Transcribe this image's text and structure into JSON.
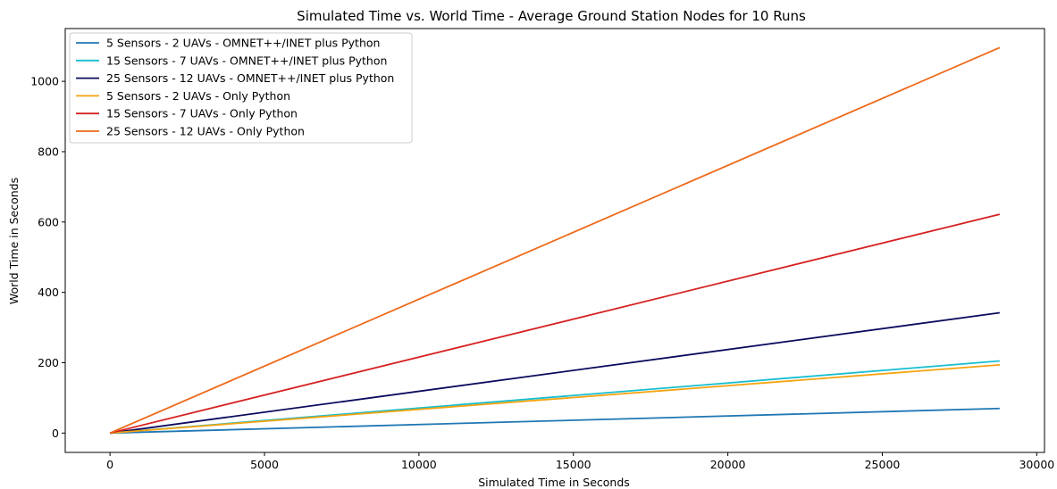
{
  "chart_data": {
    "type": "line",
    "title": "Simulated Time vs. World Time - Average Ground Station Nodes for 10 Runs",
    "xlabel": "Simulated Time in Seconds",
    "ylabel": "World Time in Seconds",
    "xlim": [
      -1450,
      30250
    ],
    "ylim": [
      -55,
      1150
    ],
    "xticks": [
      0,
      5000,
      10000,
      15000,
      20000,
      25000,
      30000
    ],
    "yticks": [
      0,
      200,
      400,
      600,
      800,
      1000
    ],
    "grid": false,
    "legend_position": "top-left",
    "series": [
      {
        "name": "5 Sensors - 2 UAVs - OMNET++/INET plus Python",
        "color": "#1f77b4",
        "x": [
          0,
          28800
        ],
        "y": [
          0,
          70
        ]
      },
      {
        "name": "15 Sensors - 7 UAVs - OMNET++/INET plus Python",
        "color": "#17becf",
        "x": [
          0,
          28800
        ],
        "y": [
          0,
          205
        ]
      },
      {
        "name": "25 Sensors - 12 UAVs - OMNET++/INET plus Python",
        "color": "#0b0b5e",
        "x": [
          0,
          28800
        ],
        "y": [
          0,
          342
        ]
      },
      {
        "name": "5 Sensors - 2 UAVs - Only Python",
        "color": "#f5a30f",
        "x": [
          0,
          28800
        ],
        "y": [
          0,
          194
        ]
      },
      {
        "name": "15 Sensors - 7 UAVs - Only Python",
        "color": "#d62020",
        "x": [
          0,
          28800
        ],
        "y": [
          0,
          622
        ]
      },
      {
        "name": "25 Sensors - 12 UAVs - Only Python",
        "color": "#ee6a1b",
        "x": [
          0,
          28800
        ],
        "y": [
          0,
          1096
        ]
      }
    ]
  }
}
